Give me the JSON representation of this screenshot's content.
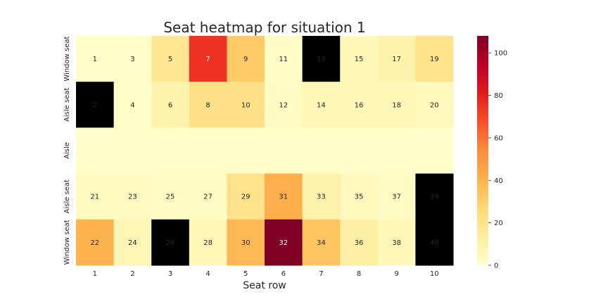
{
  "chart_data": {
    "type": "heatmap",
    "title": "Seat heatmap for situation 1",
    "xlabel": "Seat row",
    "ylabel": "",
    "x_categories": [
      "1",
      "2",
      "3",
      "4",
      "5",
      "6",
      "7",
      "8",
      "9",
      "10"
    ],
    "y_categories": [
      "Window seat",
      "Aisle seat",
      "Aisle",
      "Aisle seat",
      "Window seat"
    ],
    "values": [
      [
        1,
        1,
        18,
        75,
        32,
        2,
        null,
        6,
        10,
        20
      ],
      [
        null,
        1,
        10,
        22,
        22,
        3,
        6,
        6,
        6,
        5
      ],
      [
        1,
        1,
        1,
        1,
        1,
        1,
        1,
        1,
        1,
        1
      ],
      [
        4,
        4,
        3,
        3,
        20,
        42,
        10,
        5,
        3,
        null
      ],
      [
        40,
        7,
        null,
        6,
        38,
        108,
        34,
        12,
        6,
        null
      ]
    ],
    "cell_labels": [
      [
        "1",
        "3",
        "5",
        "7",
        "9",
        "11",
        "13",
        "15",
        "17",
        "19"
      ],
      [
        "2",
        "4",
        "6",
        "8",
        "10",
        "12",
        "14",
        "16",
        "18",
        "20"
      ],
      [
        "",
        "",
        "",
        "",
        "",
        "",
        "",
        "",
        "",
        ""
      ],
      [
        "21",
        "23",
        "25",
        "27",
        "29",
        "31",
        "33",
        "35",
        "37",
        "39"
      ],
      [
        "22",
        "24",
        "26",
        "28",
        "30",
        "32",
        "34",
        "36",
        "38",
        "40"
      ]
    ],
    "missing_color": "#000000",
    "colormap": "YlOrRd",
    "vmin": 0,
    "vmax": 108,
    "colorbar_ticks": [
      "0",
      "20",
      "40",
      "60",
      "80",
      "100"
    ],
    "colorbar_tick_values": [
      0,
      20,
      40,
      60,
      80,
      100
    ],
    "grid": false,
    "legend": "colorbar-right"
  }
}
